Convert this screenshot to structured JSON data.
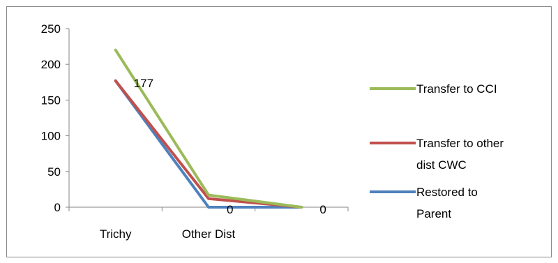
{
  "chart_data": {
    "type": "line",
    "title": "",
    "xlabel": "",
    "ylabel": "",
    "categories": [
      "Trichy",
      "Other Dist",
      ""
    ],
    "ylim": [
      0,
      250
    ],
    "yticks": [
      0,
      50,
      100,
      150,
      200,
      250
    ],
    "ytick_labels": [
      "0",
      "50",
      "100",
      "150",
      "200",
      "250"
    ],
    "grid": false,
    "legend_position": "right",
    "series": [
      {
        "name": "Transfer to CCI",
        "color": "#9BBB59",
        "values": [
          220,
          17,
          0
        ]
      },
      {
        "name": "Transfer to other dist CWC",
        "legend_lines": [
          "Transfer to other",
          "dist CWC"
        ],
        "color": "#C0504D",
        "values": [
          177,
          12,
          0
        ]
      },
      {
        "name": "Restored to Parent",
        "legend_lines": [
          "Restored to",
          "Parent"
        ],
        "color": "#4F81BD",
        "values": [
          177,
          0,
          0
        ]
      }
    ],
    "data_labels": [
      {
        "series": 2,
        "index": 0,
        "text": "177"
      },
      {
        "series": 2,
        "index": 1,
        "text": "0"
      },
      {
        "series": 2,
        "index": 2,
        "text": "0"
      }
    ]
  }
}
